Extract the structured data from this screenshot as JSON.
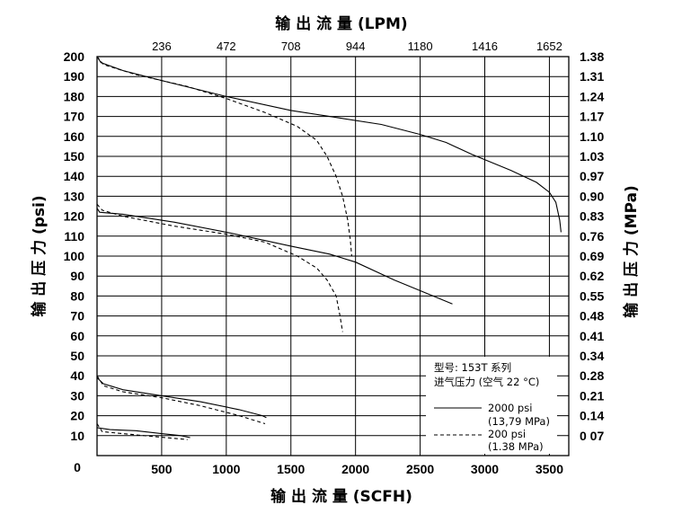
{
  "chart_data": {
    "type": "line",
    "title_top": "输 出 流 量 (LPM)",
    "xlabel": "输 出 流 量 (SCFH)",
    "ylabel_left": "输 出 压 力 (psi)",
    "ylabel_right": "输 出 压 力 (MPa)",
    "xlim": [
      0,
      3650
    ],
    "ylim": [
      0,
      200
    ],
    "grid": true,
    "x_ticks": [
      {
        "value": 500,
        "label": "500"
      },
      {
        "value": 1000,
        "label": "1000"
      },
      {
        "value": 1500,
        "label": "1500"
      },
      {
        "value": 2000,
        "label": "2000"
      },
      {
        "value": 2500,
        "label": "2500"
      },
      {
        "value": 3000,
        "label": "3000"
      },
      {
        "value": 3500,
        "label": "3500"
      }
    ],
    "x_origin_label": "0",
    "top_ticks": [
      {
        "value": 500,
        "label": "236"
      },
      {
        "value": 1000,
        "label": "472"
      },
      {
        "value": 1500,
        "label": "708"
      },
      {
        "value": 2000,
        "label": "944"
      },
      {
        "value": 2500,
        "label": "1180"
      },
      {
        "value": 3000,
        "label": "1416"
      },
      {
        "value": 3500,
        "label": "1652"
      }
    ],
    "left_ticks": [
      {
        "value": 10,
        "label": "10"
      },
      {
        "value": 20,
        "label": "20"
      },
      {
        "value": 30,
        "label": "30"
      },
      {
        "value": 40,
        "label": "40"
      },
      {
        "value": 50,
        "label": "50"
      },
      {
        "value": 60,
        "label": "60"
      },
      {
        "value": 70,
        "label": "70"
      },
      {
        "value": 80,
        "label": "80"
      },
      {
        "value": 90,
        "label": "90"
      },
      {
        "value": 100,
        "label": "100"
      },
      {
        "value": 110,
        "label": "110"
      },
      {
        "value": 120,
        "label": "120"
      },
      {
        "value": 130,
        "label": "130"
      },
      {
        "value": 140,
        "label": "140"
      },
      {
        "value": 150,
        "label": "150"
      },
      {
        "value": 160,
        "label": "160"
      },
      {
        "value": 170,
        "label": "170"
      },
      {
        "value": 180,
        "label": "180"
      },
      {
        "value": 190,
        "label": "190"
      },
      {
        "value": 200,
        "label": "200"
      }
    ],
    "right_ticks": [
      {
        "value": 10,
        "label": "0 07"
      },
      {
        "value": 20,
        "label": "0.14"
      },
      {
        "value": 30,
        "label": "0.21"
      },
      {
        "value": 40,
        "label": "0.28"
      },
      {
        "value": 50,
        "label": "0.34"
      },
      {
        "value": 60,
        "label": "0.41"
      },
      {
        "value": 70,
        "label": "0.48"
      },
      {
        "value": 80,
        "label": "0.55"
      },
      {
        "value": 90,
        "label": "0.62"
      },
      {
        "value": 100,
        "label": "0.69"
      },
      {
        "value": 110,
        "label": "0.76"
      },
      {
        "value": 120,
        "label": "0.83"
      },
      {
        "value": 130,
        "label": "0.90"
      },
      {
        "value": 140,
        "label": "0.97"
      },
      {
        "value": 150,
        "label": "1.03"
      },
      {
        "value": 160,
        "label": "1.10"
      },
      {
        "value": 170,
        "label": "1.17"
      },
      {
        "value": 180,
        "label": "1.24"
      },
      {
        "value": 190,
        "label": "1.31"
      },
      {
        "value": 200,
        "label": "1.38"
      }
    ],
    "legend": {
      "position": "bottom-right",
      "model_line": "型号: 153T 系列",
      "inlet_line": "进气压力 (空气 22 °C)",
      "entries": [
        {
          "style": "solid",
          "line1": "2000 psi",
          "line2": "(13,79 MPa)"
        },
        {
          "style": "dashed",
          "line1": "200 psi",
          "line2": "(1.38 MPa)"
        }
      ]
    },
    "series": [
      {
        "style": "solid",
        "points": [
          [
            0,
            200
          ],
          [
            30,
            197
          ],
          [
            200,
            193
          ],
          [
            500,
            188
          ],
          [
            1000,
            180
          ],
          [
            1500,
            173
          ],
          [
            1800,
            170
          ],
          [
            2200,
            166
          ],
          [
            2500,
            161
          ],
          [
            2700,
            157
          ],
          [
            2900,
            151
          ],
          [
            3200,
            143
          ],
          [
            3400,
            137
          ],
          [
            3500,
            132
          ],
          [
            3550,
            127
          ],
          [
            3580,
            118
          ],
          [
            3590,
            112
          ]
        ]
      },
      {
        "style": "dashed",
        "points": [
          [
            0,
            200
          ],
          [
            50,
            196
          ],
          [
            300,
            191
          ],
          [
            700,
            185
          ],
          [
            1000,
            179
          ],
          [
            1300,
            172
          ],
          [
            1550,
            165
          ],
          [
            1700,
            158
          ],
          [
            1780,
            150
          ],
          [
            1850,
            140
          ],
          [
            1900,
            130
          ],
          [
            1940,
            118
          ],
          [
            1960,
            108
          ],
          [
            1970,
            100
          ]
        ]
      },
      {
        "style": "solid",
        "points": [
          [
            0,
            124
          ],
          [
            20,
            122
          ],
          [
            200,
            121
          ],
          [
            600,
            117
          ],
          [
            1000,
            112
          ],
          [
            1500,
            105
          ],
          [
            1800,
            101
          ],
          [
            2000,
            97
          ],
          [
            2300,
            88
          ],
          [
            2600,
            80
          ],
          [
            2750,
            76
          ]
        ]
      },
      {
        "style": "dashed",
        "points": [
          [
            0,
            126
          ],
          [
            40,
            123
          ],
          [
            200,
            120
          ],
          [
            600,
            115
          ],
          [
            1000,
            111
          ],
          [
            1300,
            107
          ],
          [
            1550,
            100
          ],
          [
            1700,
            94
          ],
          [
            1780,
            88
          ],
          [
            1850,
            80
          ],
          [
            1880,
            70
          ],
          [
            1900,
            62
          ]
        ]
      },
      {
        "style": "solid",
        "points": [
          [
            0,
            39
          ],
          [
            50,
            36
          ],
          [
            200,
            33
          ],
          [
            500,
            30
          ],
          [
            800,
            27
          ],
          [
            1100,
            23
          ],
          [
            1280,
            20
          ],
          [
            1310,
            19
          ]
        ]
      },
      {
        "style": "dashed",
        "points": [
          [
            0,
            40
          ],
          [
            50,
            35
          ],
          [
            200,
            32
          ],
          [
            500,
            29
          ],
          [
            800,
            25
          ],
          [
            1100,
            20
          ],
          [
            1300,
            16
          ]
        ]
      },
      {
        "style": "solid",
        "points": [
          [
            0,
            14
          ],
          [
            100,
            13
          ],
          [
            300,
            12.5
          ],
          [
            500,
            11
          ],
          [
            650,
            10
          ],
          [
            720,
            9
          ]
        ]
      },
      {
        "style": "dashed",
        "points": [
          [
            0,
            16
          ],
          [
            40,
            12
          ],
          [
            200,
            11
          ],
          [
            450,
            9.5
          ],
          [
            700,
            8
          ]
        ]
      }
    ]
  }
}
